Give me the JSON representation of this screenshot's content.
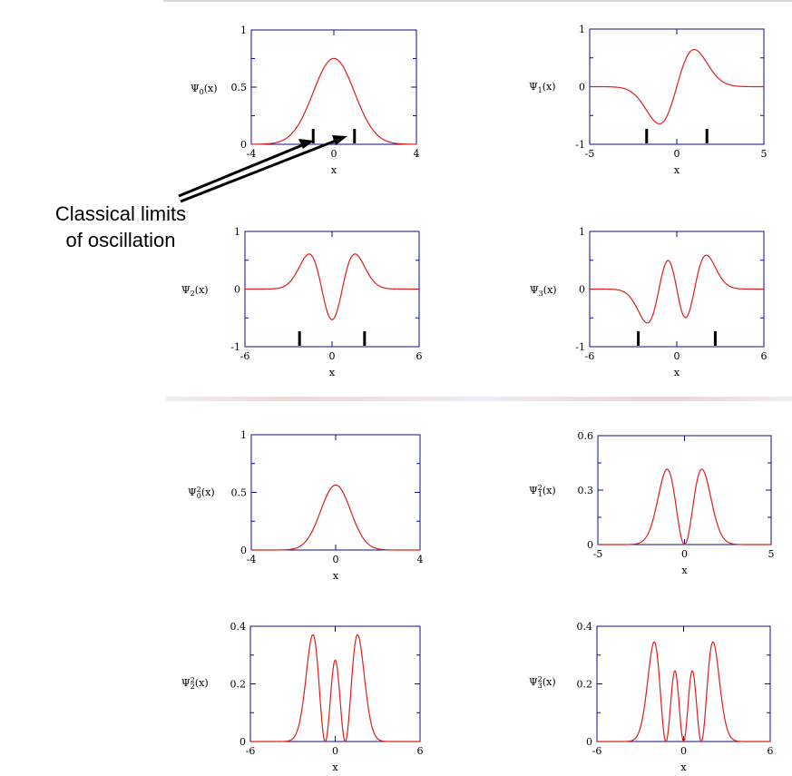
{
  "annotation": {
    "line1": "Classical limits",
    "line2": "of oscillation"
  },
  "colors": {
    "curve": "#d9201e",
    "frame": "#0d0d8c",
    "marker": "#000000"
  },
  "chart_data": [
    {
      "type": "line",
      "title": "",
      "ylabel_sym": "Ψ",
      "ylabel_sub": "0",
      "ylabel_sup": "",
      "ylabel_tail": "(x)",
      "xlabel": "x",
      "xlim": [
        -4,
        4
      ],
      "ylim": [
        0,
        1
      ],
      "xticks": [
        "-4",
        "0",
        "4"
      ],
      "yticks": [
        {
          "v": 1,
          "t": "1"
        },
        {
          "v": 0.5,
          "t": "0.5"
        },
        {
          "v": 0,
          "t": "0"
        }
      ],
      "function": "psi",
      "n": 0,
      "squared": false,
      "classical_limits": [
        -1,
        1
      ]
    },
    {
      "type": "line",
      "title": "",
      "ylabel_sym": "Ψ",
      "ylabel_sub": "1",
      "ylabel_sup": "",
      "ylabel_tail": "(x)",
      "xlabel": "x",
      "xlim": [
        -5,
        5
      ],
      "ylim": [
        -1,
        1
      ],
      "xticks": [
        "-5",
        "0",
        "5"
      ],
      "yticks": [
        {
          "v": 1,
          "t": "1"
        },
        {
          "v": 0,
          "t": "0"
        },
        {
          "v": -1,
          "t": "-1"
        }
      ],
      "function": "psi",
      "n": 1,
      "squared": false,
      "classical_limits": [
        -1.73,
        1.73
      ]
    },
    {
      "type": "line",
      "title": "",
      "ylabel_sym": "Ψ",
      "ylabel_sub": "2",
      "ylabel_sup": "",
      "ylabel_tail": "(x)",
      "xlabel": "x",
      "xlim": [
        -6,
        6
      ],
      "ylim": [
        -1,
        1
      ],
      "xticks": [
        "-6",
        "0",
        "6"
      ],
      "yticks": [
        {
          "v": 1,
          "t": "1"
        },
        {
          "v": 0,
          "t": "0"
        },
        {
          "v": -1,
          "t": "-1"
        }
      ],
      "function": "psi",
      "n": 2,
      "squared": false,
      "classical_limits": [
        -2.24,
        2.24
      ]
    },
    {
      "type": "line",
      "title": "",
      "ylabel_sym": "Ψ",
      "ylabel_sub": "3",
      "ylabel_sup": "",
      "ylabel_tail": "(x)",
      "xlabel": "x",
      "xlim": [
        -6,
        6
      ],
      "ylim": [
        -1,
        1
      ],
      "xticks": [
        "-6",
        "0",
        "6"
      ],
      "yticks": [
        {
          "v": 1,
          "t": "1"
        },
        {
          "v": 0,
          "t": "0"
        },
        {
          "v": -1,
          "t": "-1"
        }
      ],
      "function": "psi",
      "n": 3,
      "squared": false,
      "classical_limits": [
        -2.65,
        2.65
      ]
    },
    {
      "type": "line",
      "title": "",
      "ylabel_sym": "Ψ",
      "ylabel_sub": "0",
      "ylabel_sup": "2",
      "ylabel_tail": "(x)",
      "xlabel": "x",
      "xlim": [
        -4,
        4
      ],
      "ylim": [
        0,
        1
      ],
      "xticks": [
        "-4",
        "0",
        "4"
      ],
      "yticks": [
        {
          "v": 1,
          "t": "1"
        },
        {
          "v": 0.5,
          "t": "0.5"
        },
        {
          "v": 0,
          "t": "0"
        }
      ],
      "function": "psi",
      "n": 0,
      "squared": true,
      "classical_limits": []
    },
    {
      "type": "line",
      "title": "",
      "ylabel_sym": "Ψ",
      "ylabel_sub": "1",
      "ylabel_sup": "2",
      "ylabel_tail": "(x)",
      "xlabel": "x",
      "xlim": [
        -5,
        5
      ],
      "ylim": [
        0,
        0.6
      ],
      "xticks": [
        "-5",
        "0",
        "5"
      ],
      "yticks": [
        {
          "v": 0.6,
          "t": "0.6"
        },
        {
          "v": 0.3,
          "t": "0.3"
        },
        {
          "v": 0,
          "t": "0"
        }
      ],
      "function": "psi",
      "n": 1,
      "squared": true,
      "classical_limits": []
    },
    {
      "type": "line",
      "title": "",
      "ylabel_sym": "Ψ",
      "ylabel_sub": "2",
      "ylabel_sup": "2",
      "ylabel_tail": "(x)",
      "xlabel": "x",
      "xlim": [
        -6,
        6
      ],
      "ylim": [
        0,
        0.4
      ],
      "xticks": [
        "-6",
        "0",
        "6"
      ],
      "yticks": [
        {
          "v": 0.4,
          "t": "0.4"
        },
        {
          "v": 0.2,
          "t": "0.2"
        },
        {
          "v": 0,
          "t": "0"
        }
      ],
      "function": "psi",
      "n": 2,
      "squared": true,
      "classical_limits": []
    },
    {
      "type": "line",
      "title": "",
      "ylabel_sym": "Ψ",
      "ylabel_sub": "3",
      "ylabel_sup": "2",
      "ylabel_tail": "(x)",
      "xlabel": "x",
      "xlim": [
        -6,
        6
      ],
      "ylim": [
        0,
        0.4
      ],
      "xticks": [
        "-6",
        "0",
        "6"
      ],
      "yticks": [
        {
          "v": 0.4,
          "t": "0.4"
        },
        {
          "v": 0.2,
          "t": "0.2"
        },
        {
          "v": 0,
          "t": "0"
        }
      ],
      "function": "psi",
      "n": 3,
      "squared": true,
      "classical_limits": []
    }
  ]
}
